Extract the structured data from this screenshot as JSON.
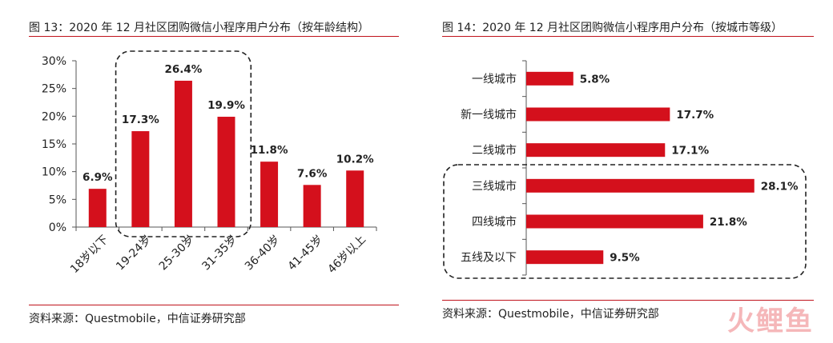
{
  "left": {
    "title": "图 13：2020 年 12 月社区团购微信小程序用户分布（按年龄结构）",
    "source": "资料来源：Questmobile，中信证券研究部"
  },
  "right": {
    "title": "图 14：2020 年 12 月社区团购微信小程序用户分布（按城市等级）",
    "source": "资料来源：Questmobile，中信证券研究部"
  },
  "watermark": "火鲤鱼",
  "colors": {
    "bar": "#d4101c",
    "rule": "#c0131c"
  },
  "chart_data": [
    {
      "type": "bar",
      "orientation": "vertical",
      "categories": [
        "18岁以下",
        "19-24岁",
        "25-30岁",
        "31-35岁",
        "36-40岁",
        "41-45岁",
        "46岁以上"
      ],
      "values": [
        6.9,
        17.3,
        26.4,
        19.9,
        11.8,
        7.6,
        10.2
      ],
      "value_labels": [
        "6.9%",
        "17.3%",
        "26.4%",
        "19.9%",
        "11.8%",
        "7.6%",
        "10.2%"
      ],
      "yticks": [
        "0%",
        "5%",
        "10%",
        "15%",
        "20%",
        "25%",
        "30%"
      ],
      "ylim": [
        0,
        30
      ],
      "grid": false,
      "highlight": [
        "19-24岁",
        "25-30岁",
        "31-35岁"
      ]
    },
    {
      "type": "bar",
      "orientation": "horizontal",
      "categories": [
        "一线城市",
        "新一线城市",
        "二线城市",
        "三线城市",
        "四线城市",
        "五线及以下"
      ],
      "values": [
        5.8,
        17.7,
        17.1,
        28.1,
        21.8,
        9.5
      ],
      "value_labels": [
        "5.8%",
        "17.7%",
        "17.1%",
        "28.1%",
        "21.8%",
        "9.5%"
      ],
      "xlim": [
        0,
        30
      ],
      "grid": false,
      "highlight": [
        "三线城市",
        "四线城市",
        "五线及以下"
      ]
    }
  ]
}
